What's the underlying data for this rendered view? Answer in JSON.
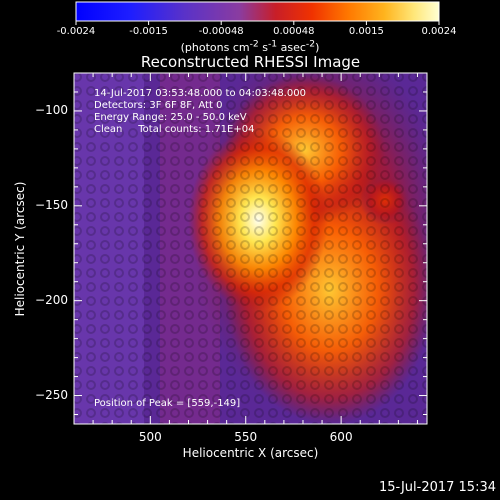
{
  "colorbar": {
    "ticks": [
      "-0.0024",
      "-0.0015",
      "-0.00048",
      "0.00048",
      "0.0015",
      "0.0024"
    ],
    "units_html": "(photons cm<sup>-2</sup> s<sup>-1</sup> asec<sup>-2</sup>)"
  },
  "chart_data": {
    "type": "heatmap",
    "title": "Reconstructed RHESSI Image",
    "xlabel": "Heliocentric X (arcsec)",
    "ylabel": "Heliocentric Y (arcsec)",
    "x_ticks": [
      500,
      550,
      600
    ],
    "y_ticks": [
      -100,
      -150,
      -200,
      -250
    ],
    "xlim": [
      460,
      645
    ],
    "ylim": [
      -265,
      -80
    ],
    "colorscale_range": [
      -0.0024,
      0.0024
    ],
    "annotations": [
      "14-Jul-2017 03:53:48.000 to 04:03:48.000",
      "Detectors: 3F 6F 8F, Att 0",
      "Energy Range: 25.0 - 50.0 keV",
      "Clean     Total counts: 1.71E+04"
    ],
    "peak_label": "Position of Peak = [559,-149]",
    "peak_position": [
      559,
      -149
    ]
  },
  "footer": {
    "timestamp": "15-Jul-2017 15:34"
  }
}
